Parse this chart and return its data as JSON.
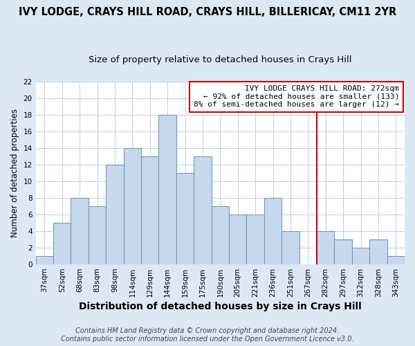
{
  "title": "IVY LODGE, CRAYS HILL ROAD, CRAYS HILL, BILLERICAY, CM11 2YR",
  "subtitle": "Size of property relative to detached houses in Crays Hill",
  "xlabel": "Distribution of detached houses by size in Crays Hill",
  "ylabel": "Number of detached properties",
  "bar_labels": [
    "37sqm",
    "52sqm",
    "68sqm",
    "83sqm",
    "98sqm",
    "114sqm",
    "129sqm",
    "144sqm",
    "159sqm",
    "175sqm",
    "190sqm",
    "205sqm",
    "221sqm",
    "236sqm",
    "251sqm",
    "267sqm",
    "282sqm",
    "297sqm",
    "312sqm",
    "328sqm",
    "343sqm"
  ],
  "bar_values": [
    1,
    5,
    8,
    7,
    12,
    14,
    13,
    18,
    11,
    13,
    7,
    6,
    6,
    8,
    4,
    0,
    4,
    3,
    2,
    3,
    1
  ],
  "bar_color": "#c8d9ee",
  "bar_edge_color": "#7098c0",
  "vline_x_idx": 15,
  "vline_color": "#cc0000",
  "annotation_title": "IVY LODGE CRAYS HILL ROAD: 272sqm",
  "annotation_line1": "← 92% of detached houses are smaller (133)",
  "annotation_line2": "8% of semi-detached houses are larger (12) →",
  "annotation_box_facecolor": "#ffffff",
  "annotation_box_edgecolor": "#cc0000",
  "ylim": [
    0,
    22
  ],
  "yticks": [
    0,
    2,
    4,
    6,
    8,
    10,
    12,
    14,
    16,
    18,
    20,
    22
  ],
  "grid_color": "#c0cfe0",
  "plot_bg_color": "#ffffff",
  "fig_bg_color": "#dce9f5",
  "footer_line1": "Contains HM Land Registry data © Crown copyright and database right 2024.",
  "footer_line2": "Contains public sector information licensed under the Open Government Licence v3.0.",
  "title_fontsize": 10.5,
  "subtitle_fontsize": 9.5,
  "xlabel_fontsize": 10,
  "ylabel_fontsize": 8.5,
  "tick_fontsize": 7.5,
  "annotation_fontsize": 8,
  "footer_fontsize": 7
}
